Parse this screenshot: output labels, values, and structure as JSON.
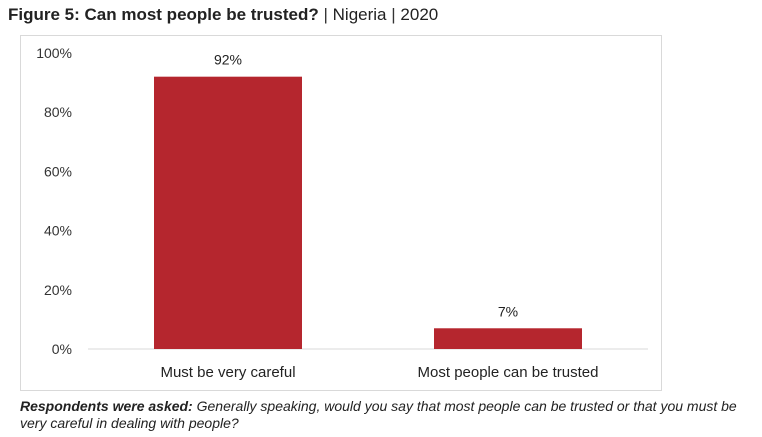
{
  "title": {
    "bold": "Figure 5: Can most people be trusted?",
    "sep1": "|",
    "country": "Nigeria",
    "sep2": "|",
    "year": "2020"
  },
  "note": {
    "lead": "Respondents were asked:",
    "text": "Generally speaking, would you say that most people can be trusted or that you must be very careful in dealing with people?"
  },
  "chart_data": {
    "type": "bar",
    "categories": [
      "Must be very careful",
      "Most people can be trusted"
    ],
    "values": [
      92,
      7
    ],
    "data_labels": [
      "92%",
      "7%"
    ],
    "yticks": [
      "0%",
      "20%",
      "40%",
      "60%",
      "80%",
      "100%"
    ],
    "ylim": [
      0,
      100
    ],
    "grid": false,
    "bar_color": "#b5262e"
  }
}
